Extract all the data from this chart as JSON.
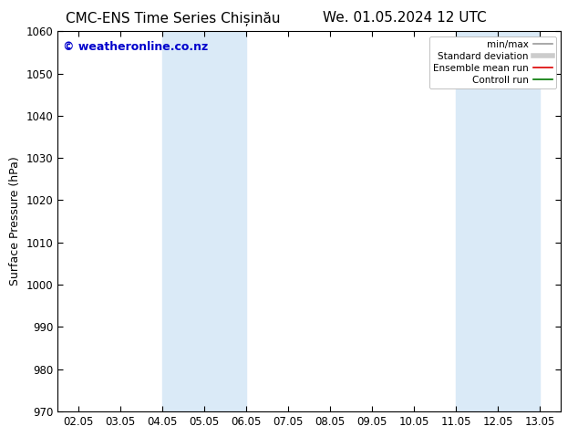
{
  "title_left": "CMC-ENS Time Series Chișinău",
  "title_right": "We. 01.05.2024 12 UTC",
  "ylabel": "Surface Pressure (hPa)",
  "ylim": [
    970,
    1060
  ],
  "yticks": [
    970,
    980,
    990,
    1000,
    1010,
    1020,
    1030,
    1040,
    1050,
    1060
  ],
  "xtick_labels": [
    "02.05",
    "03.05",
    "04.05",
    "05.05",
    "06.05",
    "07.05",
    "08.05",
    "09.05",
    "10.05",
    "11.05",
    "12.05",
    "13.05"
  ],
  "xtick_positions": [
    0,
    1,
    2,
    3,
    4,
    5,
    6,
    7,
    8,
    9,
    10,
    11
  ],
  "xlim": [
    -0.5,
    11.5
  ],
  "shaded_bands": [
    {
      "x_start": 2.0,
      "x_end": 4.0,
      "color": "#daeaf7"
    },
    {
      "x_start": 9.0,
      "x_end": 11.0,
      "color": "#daeaf7"
    }
  ],
  "watermark_text": "© weatheronline.co.nz",
  "watermark_color": "#0000cc",
  "watermark_fontsize": 9,
  "legend_entries": [
    {
      "label": "min/max",
      "color": "#999999",
      "lw": 1.2,
      "style": "solid"
    },
    {
      "label": "Standard deviation",
      "color": "#cccccc",
      "lw": 4,
      "style": "solid"
    },
    {
      "label": "Ensemble mean run",
      "color": "#dd0000",
      "lw": 1.2,
      "style": "solid"
    },
    {
      "label": "Controll run",
      "color": "#007700",
      "lw": 1.2,
      "style": "solid"
    }
  ],
  "background_color": "#ffffff",
  "plot_bg_color": "#ffffff",
  "spine_color": "#000000",
  "title_fontsize": 11,
  "tick_fontsize": 8.5,
  "ylabel_fontsize": 9
}
